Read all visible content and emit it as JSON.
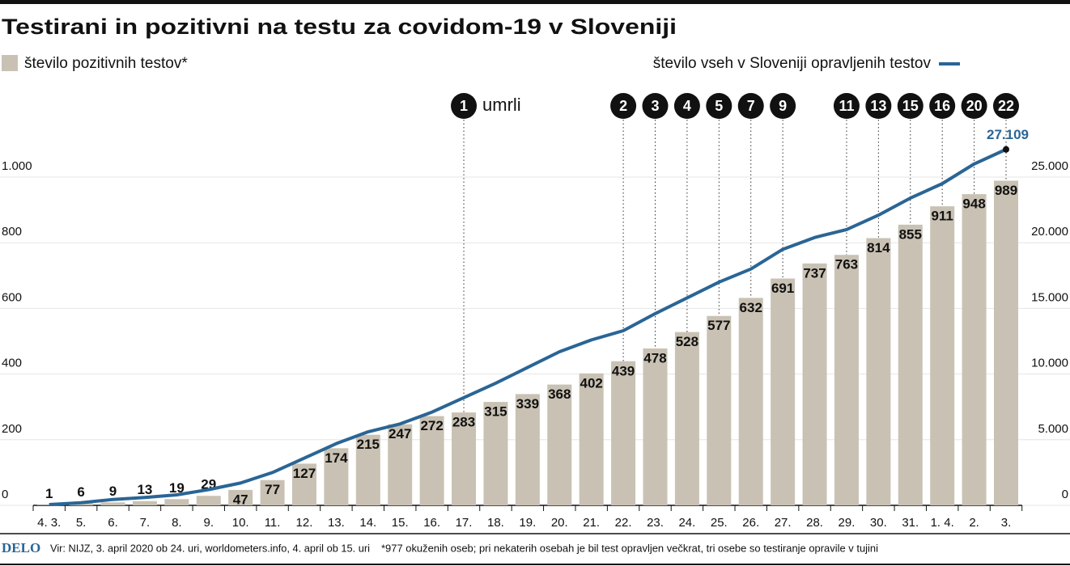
{
  "chart_data": {
    "type": "bar",
    "title": "Testirani in pozitivni na testu za covidom-19 v Sloveniji",
    "categories": [
      "4. 3.",
      "5.",
      "6.",
      "7.",
      "8.",
      "9.",
      "10.",
      "11.",
      "12.",
      "13.",
      "14.",
      "15.",
      "16.",
      "17.",
      "18.",
      "19.",
      "20.",
      "21.",
      "22.",
      "23.",
      "24.",
      "25.",
      "26.",
      "27.",
      "28.",
      "29.",
      "30.",
      "31.",
      "1. 4.",
      "2.",
      "3."
    ],
    "series": [
      {
        "name": "število pozitivnih testov*",
        "type": "bar",
        "color": "#c9c2b4",
        "values": [
          1,
          6,
          9,
          13,
          19,
          29,
          47,
          77,
          127,
          174,
          215,
          247,
          272,
          283,
          315,
          339,
          368,
          402,
          439,
          478,
          528,
          577,
          632,
          691,
          737,
          763,
          814,
          855,
          911,
          948,
          989
        ]
      },
      {
        "name": "število vseh v Sloveniji opravljenih testov",
        "type": "line",
        "axis": "y2",
        "color": "#2a6595",
        "values": [
          60,
          200,
          450,
          600,
          800,
          1200,
          1700,
          2500,
          3600,
          4700,
          5600,
          6200,
          7100,
          8200,
          9300,
          10500,
          11700,
          12600,
          13300,
          14600,
          15800,
          17000,
          18000,
          19500,
          20400,
          21000,
          22100,
          23400,
          24500,
          26000,
          27109
        ],
        "value_labels": [
          null,
          null,
          null,
          null,
          null,
          null,
          null,
          null,
          null,
          null,
          null,
          null,
          null,
          null,
          null,
          null,
          null,
          null,
          null,
          null,
          null,
          null,
          null,
          null,
          null,
          null,
          null,
          null,
          null,
          null,
          "27.109"
        ]
      }
    ],
    "ylim": [
      0,
      1200
    ],
    "yticks": [
      0,
      200,
      400,
      600,
      800,
      {
        "value": 1000,
        "label": "1.000"
      }
    ],
    "y2lim": [
      0,
      30000
    ],
    "y2ticks": [
      0,
      {
        "value": 5000,
        "label": "5.000"
      },
      {
        "value": 10000,
        "label": "10.000"
      },
      {
        "value": 15000,
        "label": "15.000"
      },
      {
        "value": 20000,
        "label": "20.000"
      },
      {
        "value": 25000,
        "label": "25.000"
      }
    ],
    "grid": true,
    "deaths": {
      "label": "umrli",
      "values": [
        null,
        null,
        null,
        null,
        null,
        null,
        null,
        null,
        null,
        null,
        null,
        null,
        null,
        1,
        null,
        null,
        null,
        null,
        2,
        3,
        4,
        5,
        7,
        9,
        null,
        11,
        13,
        15,
        16,
        20,
        22
      ]
    },
    "footer": {
      "logo": "DELO",
      "source": "Vir: NIJZ, 3. april 2020 ob 24. uri, worldometers.info, 4. april ob 15. uri",
      "note": "*977 okuženih oseb; pri nekaterih osebah je bil test opravljen večkrat, tri osebe so testiranje opravile v tujini"
    }
  }
}
